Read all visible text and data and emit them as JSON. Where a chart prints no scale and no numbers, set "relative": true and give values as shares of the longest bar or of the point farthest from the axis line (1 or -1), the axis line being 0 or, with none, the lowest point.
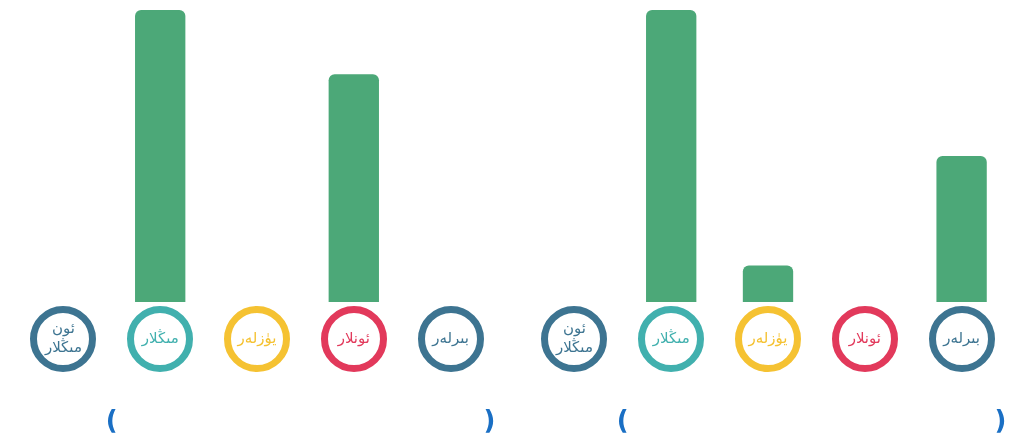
{
  "chart_data": [
    {
      "type": "bar",
      "relative": true,
      "categories": [
        "ئون مىڭلار",
        "مىڭلار",
        "يۈزلەر",
        "ئونلار",
        "بىرلەر"
      ],
      "values": [
        0,
        1,
        0,
        0.78,
        0
      ],
      "color": "#4ca878",
      "annotations": [
        "(",
        ")"
      ]
    },
    {
      "type": "bar",
      "relative": true,
      "categories": [
        "ئون مىڭلار",
        "مىڭلار",
        "يۈزلەر",
        "ئونلار",
        "بىرلەر"
      ],
      "values": [
        0,
        1,
        0.125,
        0,
        0.5
      ],
      "color": "#4ca878",
      "annotations": [
        "(",
        ")"
      ]
    }
  ]
}
